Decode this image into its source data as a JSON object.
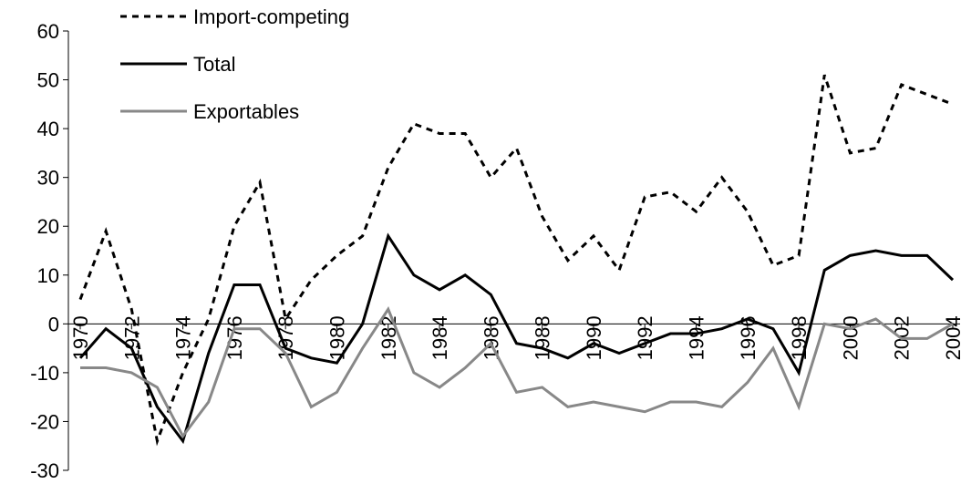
{
  "chart_data": {
    "type": "line",
    "x": [
      1970,
      1971,
      1972,
      1973,
      1974,
      1975,
      1976,
      1977,
      1978,
      1979,
      1980,
      1981,
      1982,
      1983,
      1984,
      1985,
      1986,
      1987,
      1988,
      1989,
      1990,
      1991,
      1992,
      1993,
      1994,
      1995,
      1996,
      1997,
      1998,
      1999,
      2000,
      2001,
      2002,
      2003,
      2004
    ],
    "xlim": [
      1970,
      2004
    ],
    "xticks": [
      1970,
      1972,
      1974,
      1976,
      1978,
      1980,
      1982,
      1984,
      1986,
      1988,
      1990,
      1992,
      1994,
      1996,
      1998,
      2000,
      2002,
      2004
    ],
    "ylim": [
      -30,
      60
    ],
    "yticks": [
      -30,
      -20,
      -10,
      0,
      10,
      20,
      30,
      40,
      50,
      60
    ],
    "legend": "top-left",
    "series": [
      {
        "name": "Import-competing",
        "color": "#000000",
        "style": "dashed",
        "values": [
          5,
          19,
          3,
          -24,
          -10,
          1,
          20,
          29,
          1,
          9,
          14,
          18,
          32,
          41,
          39,
          39,
          30,
          36,
          22,
          13,
          18,
          11,
          26,
          27,
          23,
          30,
          23,
          12,
          14,
          51,
          35,
          36,
          49,
          47,
          45
        ]
      },
      {
        "name": "Total",
        "color": "#000000",
        "style": "solid",
        "values": [
          -7,
          -1,
          -5,
          -17,
          -24,
          -6,
          8,
          8,
          -5,
          -7,
          -8,
          0,
          18,
          10,
          7,
          10,
          6,
          -4,
          -5,
          -7,
          -4,
          -6,
          -4,
          -2,
          -2,
          -1,
          1,
          -1,
          -10,
          11,
          14,
          15,
          14,
          14,
          9
        ]
      },
      {
        "name": "Exportables",
        "color": "#888888",
        "style": "solid",
        "values": [
          -9,
          -9,
          -10,
          -13,
          -23,
          -16,
          -1,
          -1,
          -6,
          -17,
          -14,
          -5,
          3,
          -10,
          -13,
          -9,
          -4,
          -14,
          -13,
          -17,
          -16,
          -17,
          -18,
          -16,
          -16,
          -17,
          -12,
          -5,
          -17,
          0,
          -1,
          1,
          -3,
          -3,
          0
        ]
      }
    ]
  }
}
